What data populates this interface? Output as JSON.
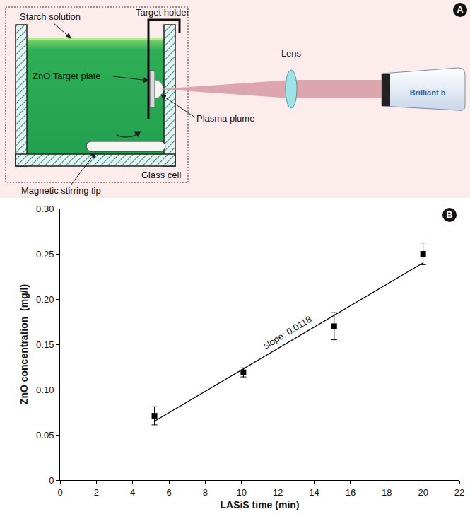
{
  "diagram": {
    "letter": "A",
    "labels": {
      "starch_solution": "Starch solution",
      "target_holder": "Target holder",
      "target_plate": "ZnO Target plate",
      "plasma_plume": "Plasma plume",
      "lens": "Lens",
      "glass_cell": "Glass cell",
      "stirring_tip": "Magnetic stirring tip",
      "laser_brand": "Brilliant b"
    }
  },
  "chart_data": {
    "letter": "B",
    "type": "scatter",
    "x_label": "LASiS time (min)",
    "y_label": "ZnO concentration  (mg/l)",
    "series": [
      {
        "type": "scatter",
        "marker": "square",
        "color": "#000000",
        "x": [
          5.2,
          10.1,
          15.1,
          20.0
        ],
        "values": [
          0.071,
          0.119,
          0.17,
          0.25
        ],
        "error": [
          0.01,
          0.005,
          0.015,
          0.012
        ]
      },
      {
        "type": "line",
        "line_style": "solid",
        "color": "#000000",
        "x": [
          5.2,
          20.0
        ],
        "values": [
          0.065,
          0.24
        ]
      }
    ],
    "annotations": [
      {
        "text": "slope: 0.0118",
        "x": 12.5,
        "y": 0.163
      }
    ],
    "xlim": [
      0,
      22
    ],
    "xticks": [
      0,
      2,
      4,
      6,
      8,
      10,
      12,
      14,
      16,
      18,
      20,
      22
    ],
    "ylim": [
      0,
      0.3
    ],
    "yticks": [
      0,
      0.05,
      {
        "value": 0.1,
        "label": "0.10"
      },
      0.15,
      {
        "value": 0.2,
        "label": "0.20"
      },
      0.25,
      {
        "value": 0.3,
        "label": "0.30"
      }
    ],
    "grid": false
  }
}
